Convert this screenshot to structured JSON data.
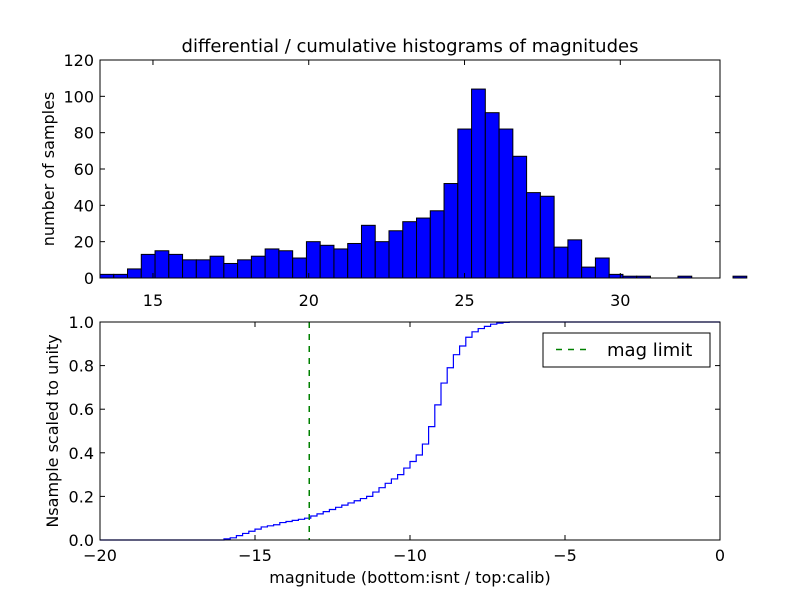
{
  "colors": {
    "bar_fill": "#0000ff",
    "bar_edge": "#000000",
    "step_line": "#0000ff",
    "limit_line": "#008000",
    "axes": "#000000",
    "background": "#ffffff"
  },
  "chart_data": [
    {
      "type": "bar",
      "title": "differential / cumulative histograms of magnitudes",
      "xlabel": "",
      "ylabel": "number of samples",
      "xlim": [
        13.3,
        33.2
      ],
      "ylim": [
        0,
        120
      ],
      "grid": false,
      "bin_start": 13.3,
      "bin_width": 0.4417,
      "values": [
        2,
        2,
        5,
        13,
        15,
        13,
        10,
        10,
        12,
        8,
        10,
        12,
        16,
        15,
        11,
        20,
        18,
        16,
        19,
        29,
        20,
        26,
        31,
        33,
        37,
        52,
        82,
        104,
        91,
        82,
        67,
        47,
        45,
        17,
        21,
        6,
        11,
        2,
        1,
        1,
        0,
        0,
        1,
        0,
        0,
        0,
        1
      ],
      "x_ticks": [
        15,
        20,
        25,
        30
      ],
      "y_ticks": [
        0,
        20,
        40,
        60,
        80,
        100,
        120
      ]
    },
    {
      "type": "line",
      "subtype": "step",
      "xlabel": "magnitude (bottom:isnt / top:calib)",
      "ylabel": "Nsample scaled to unity",
      "xlim": [
        -20,
        0
      ],
      "ylim": [
        0,
        1.0
      ],
      "grid": false,
      "x": [
        -16.3,
        -16.0,
        -15.8,
        -15.6,
        -15.4,
        -15.2,
        -15.0,
        -14.8,
        -14.6,
        -14.4,
        -14.2,
        -14.0,
        -13.8,
        -13.6,
        -13.4,
        -13.2,
        -13.0,
        -12.8,
        -12.6,
        -12.4,
        -12.2,
        -12.0,
        -11.8,
        -11.6,
        -11.4,
        -11.2,
        -11.0,
        -10.8,
        -10.6,
        -10.4,
        -10.2,
        -10.0,
        -9.8,
        -9.6,
        -9.4,
        -9.2,
        -9.0,
        -8.8,
        -8.6,
        -8.4,
        -8.2,
        -8.0,
        -7.8,
        -7.6,
        -7.4,
        -7.2,
        -7.0,
        -6.8,
        -6.6,
        -6.4,
        -6.2
      ],
      "y": [
        0.0,
        0.005,
        0.01,
        0.02,
        0.03,
        0.04,
        0.05,
        0.06,
        0.065,
        0.07,
        0.08,
        0.085,
        0.09,
        0.095,
        0.1,
        0.11,
        0.12,
        0.13,
        0.14,
        0.15,
        0.16,
        0.17,
        0.18,
        0.19,
        0.2,
        0.22,
        0.24,
        0.26,
        0.28,
        0.3,
        0.33,
        0.36,
        0.39,
        0.44,
        0.52,
        0.62,
        0.72,
        0.79,
        0.85,
        0.89,
        0.93,
        0.955,
        0.97,
        0.98,
        0.99,
        0.995,
        0.998,
        1.0,
        1.0,
        1.0,
        1.0
      ],
      "x_ticks": [
        -20,
        -15,
        -10,
        -5,
        0
      ],
      "x_tick_labels": [
        "−20",
        "−15",
        "−10",
        "−5",
        "0"
      ],
      "y_ticks": [
        0.0,
        0.2,
        0.4,
        0.6,
        0.8,
        1.0
      ],
      "y_tick_labels": [
        "0.0",
        "0.2",
        "0.4",
        "0.6",
        "0.8",
        "1.0"
      ],
      "vline": {
        "x": -13.25,
        "label": "mag limit",
        "style": "dashed"
      },
      "legend": {
        "entries": [
          "mag limit"
        ],
        "placement": "top-right"
      }
    }
  ]
}
